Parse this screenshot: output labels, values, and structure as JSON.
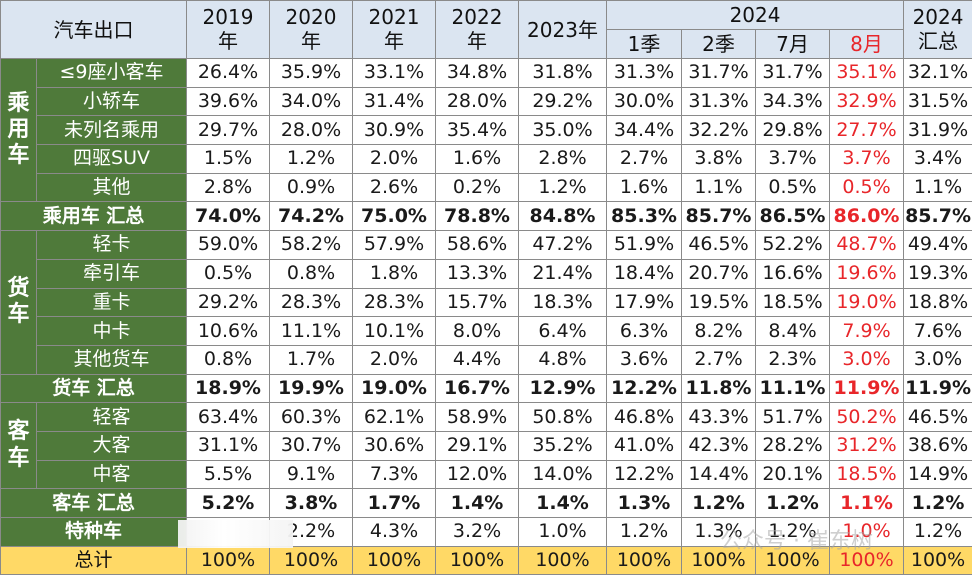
{
  "header": {
    "corner": "汽车出口",
    "years": [
      "2019\n年",
      "2020\n年",
      "2021\n年",
      "2022\n年"
    ],
    "y2023": "2023年",
    "y2024": "2024",
    "months": [
      "1季",
      "2季",
      "7月",
      "8月"
    ],
    "summary": "2024\n汇总"
  },
  "groups": {
    "passenger": "乘\n用\n车",
    "truck": "货\n车",
    "bus": "客\n车"
  },
  "rows": [
    {
      "label": "≤9座小客车",
      "values": [
        "26.4%",
        "35.9%",
        "33.1%",
        "34.8%",
        "31.8%",
        "31.3%",
        "31.7%",
        "31.7%",
        "35.1%",
        "32.1%"
      ]
    },
    {
      "label": "小轿车",
      "values": [
        "39.6%",
        "34.0%",
        "31.4%",
        "28.0%",
        "29.2%",
        "30.0%",
        "31.3%",
        "34.3%",
        "32.9%",
        "31.5%"
      ]
    },
    {
      "label": "未列名乘用",
      "values": [
        "29.7%",
        "28.0%",
        "30.9%",
        "35.4%",
        "35.0%",
        "34.4%",
        "32.2%",
        "29.8%",
        "27.7%",
        "31.9%"
      ]
    },
    {
      "label": "四驱SUV",
      "values": [
        "1.5%",
        "1.2%",
        "2.0%",
        "1.6%",
        "2.8%",
        "2.7%",
        "3.8%",
        "3.7%",
        "3.7%",
        "3.4%"
      ]
    },
    {
      "label": "其他",
      "values": [
        "2.8%",
        "0.9%",
        "2.6%",
        "0.2%",
        "1.2%",
        "1.6%",
        "1.1%",
        "0.5%",
        "0.5%",
        "1.1%"
      ]
    },
    {
      "label": "乘用车 汇总",
      "values": [
        "74.0%",
        "74.2%",
        "75.0%",
        "78.8%",
        "84.8%",
        "85.3%",
        "85.7%",
        "86.5%",
        "86.0%",
        "85.7%"
      ]
    },
    {
      "label": "轻卡",
      "values": [
        "59.0%",
        "58.2%",
        "57.9%",
        "58.6%",
        "47.2%",
        "51.9%",
        "46.5%",
        "52.2%",
        "48.7%",
        "49.4%"
      ]
    },
    {
      "label": "牵引车",
      "values": [
        "0.5%",
        "0.8%",
        "1.8%",
        "13.3%",
        "21.4%",
        "18.4%",
        "20.7%",
        "16.6%",
        "19.6%",
        "19.3%"
      ]
    },
    {
      "label": "重卡",
      "values": [
        "29.2%",
        "28.3%",
        "28.3%",
        "15.7%",
        "18.3%",
        "17.9%",
        "19.5%",
        "18.5%",
        "19.0%",
        "18.8%"
      ]
    },
    {
      "label": "中卡",
      "values": [
        "10.6%",
        "11.1%",
        "10.1%",
        "8.0%",
        "6.4%",
        "6.3%",
        "8.2%",
        "8.4%",
        "7.9%",
        "7.6%"
      ]
    },
    {
      "label": "其他货车",
      "values": [
        "0.8%",
        "1.7%",
        "2.0%",
        "4.4%",
        "4.8%",
        "3.6%",
        "2.7%",
        "2.3%",
        "3.0%",
        "3.0%"
      ]
    },
    {
      "label": "货车 汇总",
      "values": [
        "18.9%",
        "19.9%",
        "19.0%",
        "16.7%",
        "12.9%",
        "12.2%",
        "11.8%",
        "11.1%",
        "11.9%",
        "11.9%"
      ]
    },
    {
      "label": "轻客",
      "values": [
        "63.4%",
        "60.3%",
        "62.1%",
        "58.9%",
        "50.8%",
        "46.8%",
        "43.3%",
        "51.7%",
        "50.2%",
        "46.5%"
      ]
    },
    {
      "label": "大客",
      "values": [
        "31.1%",
        "30.7%",
        "30.6%",
        "29.1%",
        "35.2%",
        "41.0%",
        "42.3%",
        "28.2%",
        "31.2%",
        "38.6%"
      ]
    },
    {
      "label": "中客",
      "values": [
        "5.5%",
        "9.1%",
        "7.3%",
        "12.0%",
        "14.0%",
        "12.2%",
        "14.4%",
        "20.1%",
        "18.5%",
        "14.9%"
      ]
    },
    {
      "label": "客车 汇总",
      "values": [
        "5.2%",
        "3.8%",
        "1.7%",
        "1.4%",
        "1.4%",
        "1.3%",
        "1.2%",
        "1.2%",
        "1.1%",
        "1.2%"
      ]
    },
    {
      "label": "特种车",
      "values": [
        "",
        "2.2%",
        "4.3%",
        "3.2%",
        "1.0%",
        "1.2%",
        "1.3%",
        "1.2%",
        "1.0%",
        "1.2%"
      ]
    },
    {
      "label": "总计",
      "values": [
        "100%",
        "100%",
        "100%",
        "100%",
        "100%",
        "100%",
        "100%",
        "100%",
        "100%",
        "100%"
      ]
    }
  ],
  "watermark": "公众号 · 崔东树",
  "colors": {
    "group_bg": "#4f7a3a",
    "header_bg": "#dbe5f1",
    "total_bg": "#ffd966",
    "highlight_text": "#e8262a"
  }
}
